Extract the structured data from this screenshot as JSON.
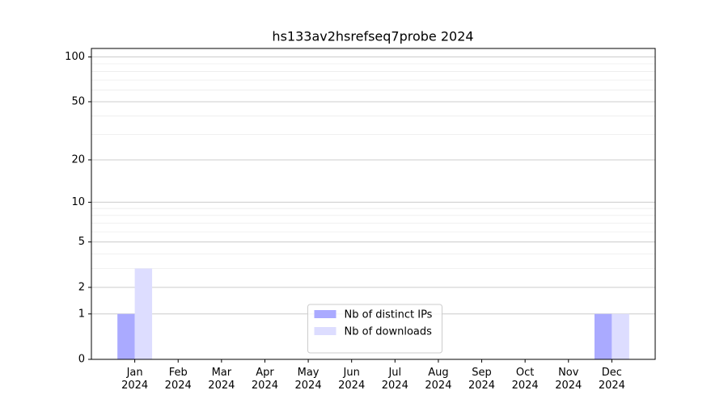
{
  "chart_data": {
    "type": "bar",
    "title": "hs133av2hsrefseq7probe 2024",
    "categories": [
      "Jan\n2024",
      "Feb\n2024",
      "Mar\n2024",
      "Apr\n2024",
      "May\n2024",
      "Jun\n2024",
      "Jul\n2024",
      "Aug\n2024",
      "Sep\n2024",
      "Oct\n2024",
      "Nov\n2024",
      "Dec\n2024"
    ],
    "series": [
      {
        "name": "Nb of distinct IPs",
        "color": "#aaaaff",
        "values": [
          1,
          0,
          0,
          0,
          0,
          0,
          0,
          0,
          0,
          0,
          0,
          1
        ]
      },
      {
        "name": "Nb of downloads",
        "color": "#ddddff",
        "values": [
          3,
          0,
          0,
          0,
          0,
          0,
          0,
          0,
          0,
          0,
          0,
          1
        ]
      }
    ],
    "y_scale": "log1p",
    "ylim": [
      0,
      114
    ],
    "yticks": [
      0,
      1,
      2,
      5,
      10,
      20,
      50,
      100
    ],
    "minor_yticks": [
      3,
      4,
      6,
      7,
      8,
      9,
      30,
      40,
      60,
      70,
      80,
      90
    ],
    "grid": true,
    "legend": "lower center"
  }
}
